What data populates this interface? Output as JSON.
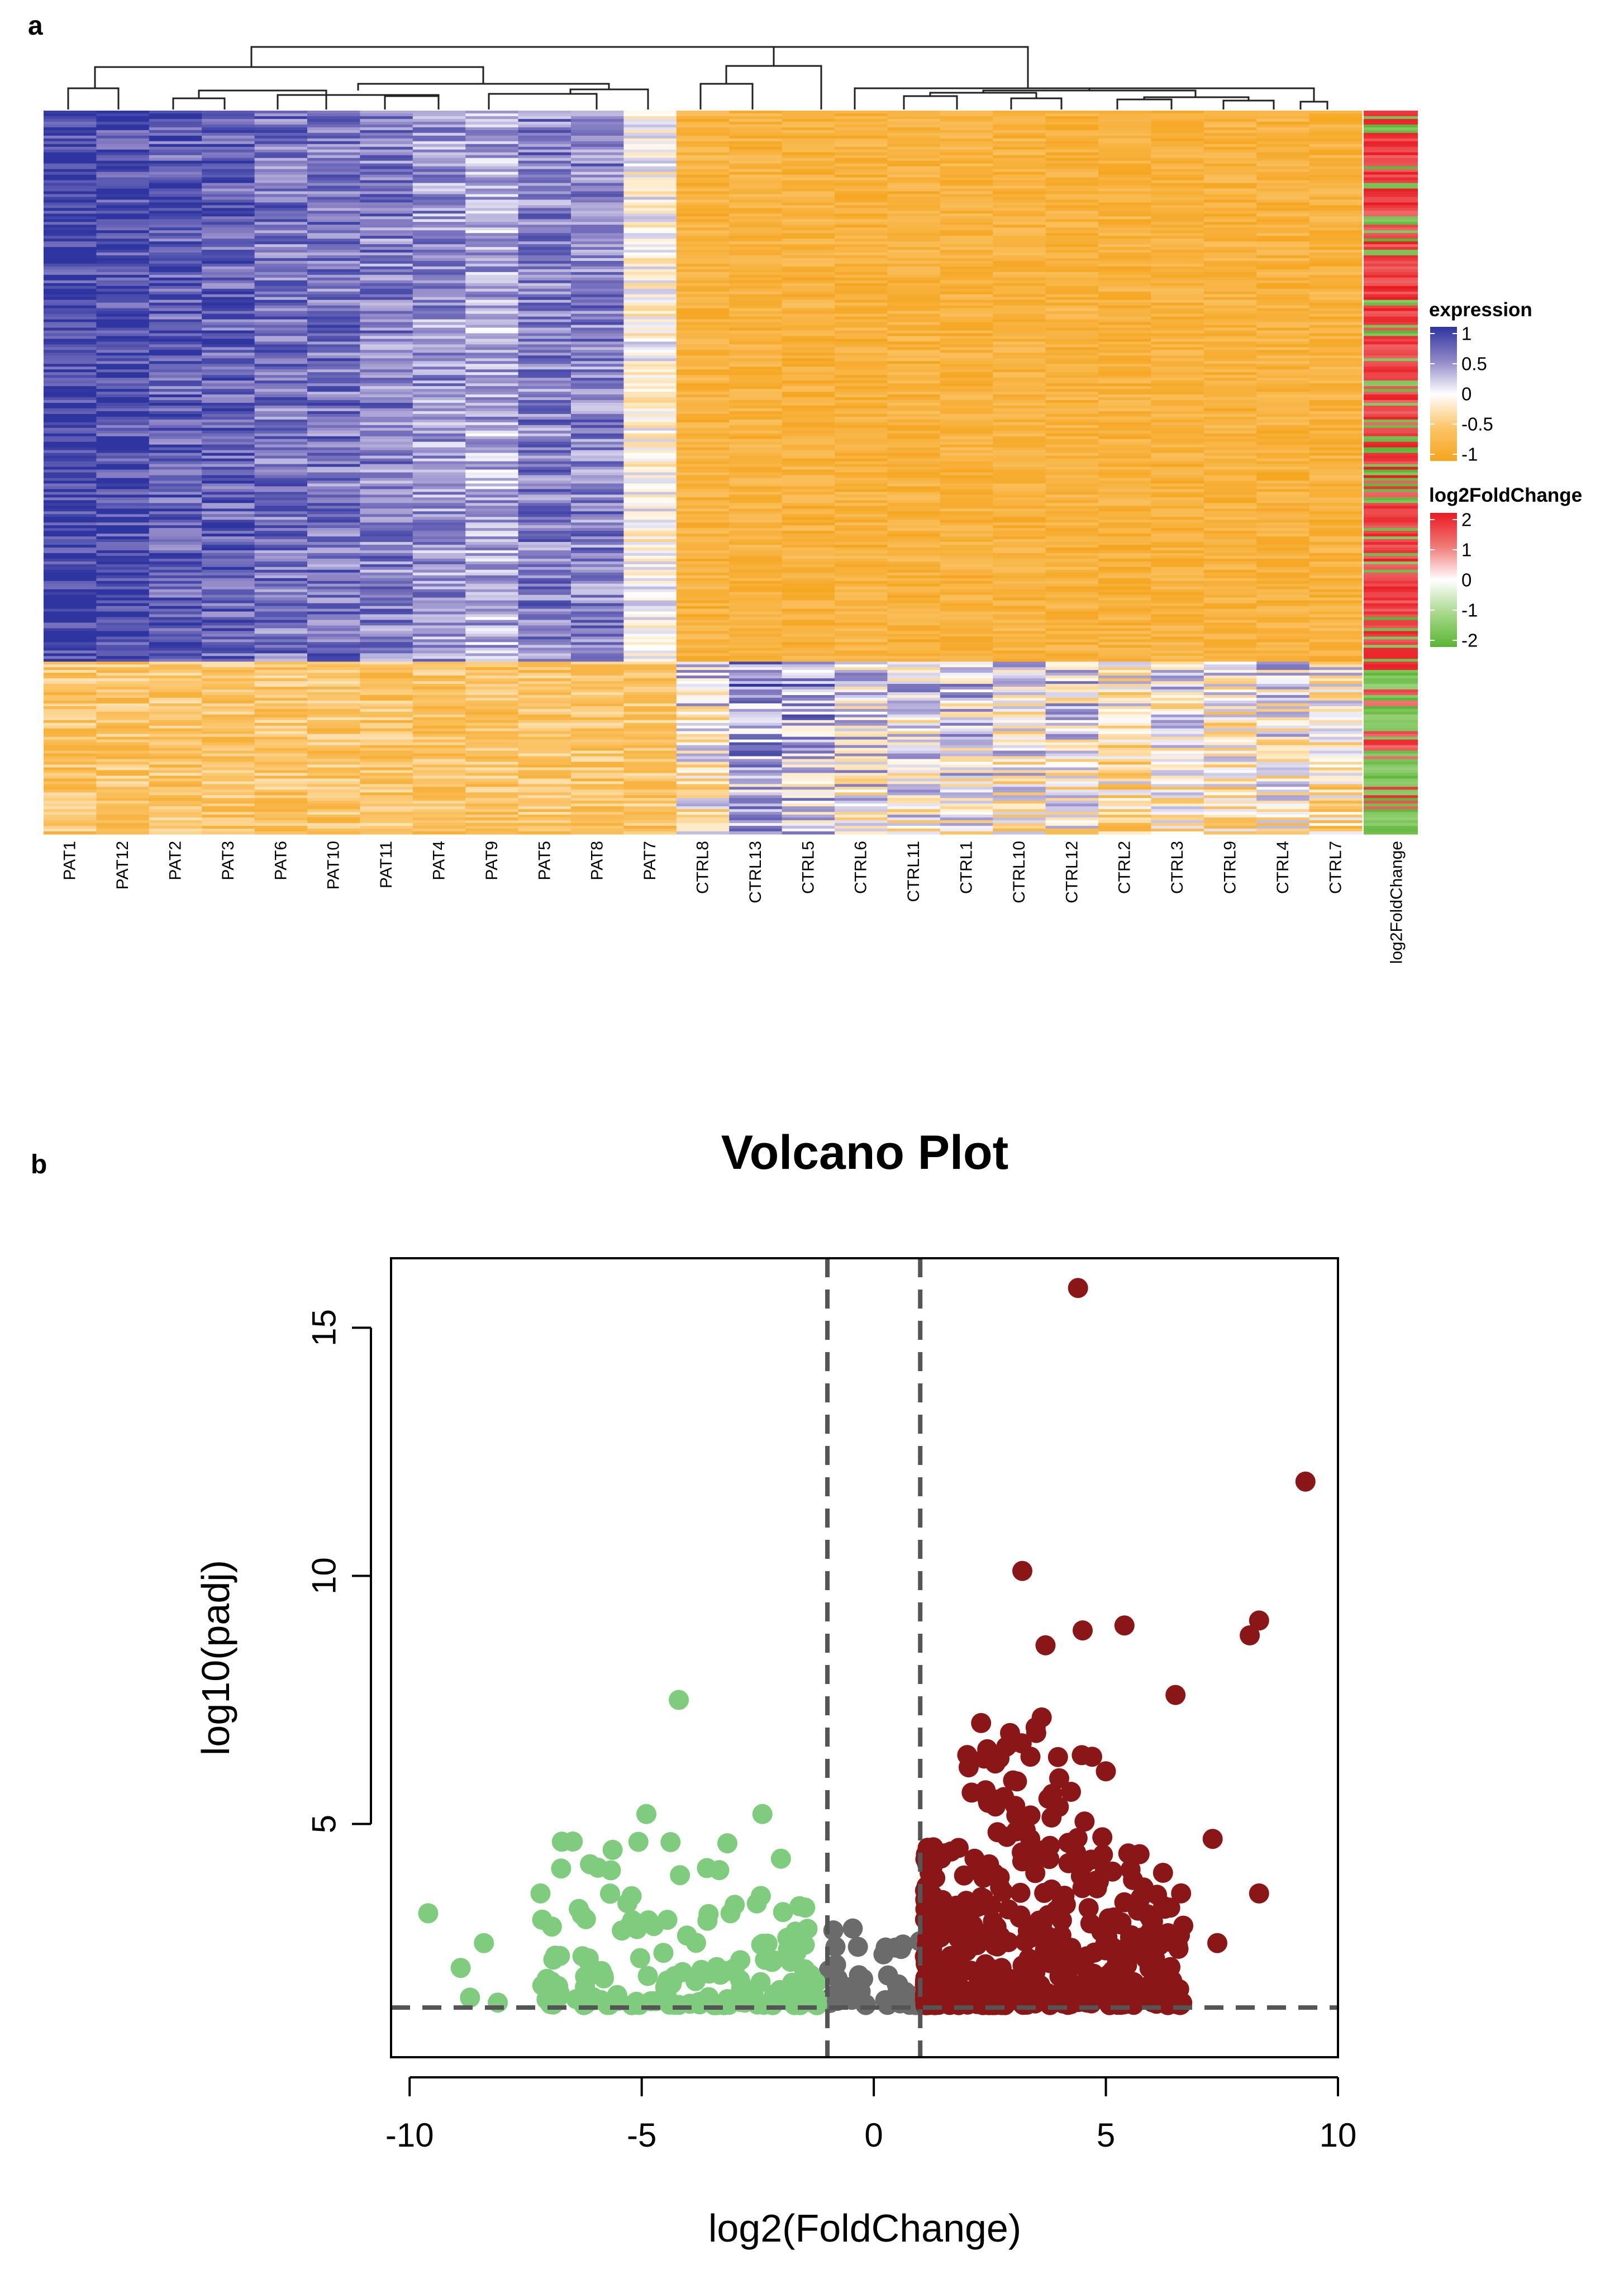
{
  "chart_data": [
    {
      "type": "heatmap",
      "panel_label": "a",
      "samples": [
        "PAT1",
        "PAT12",
        "PAT2",
        "PAT3",
        "PAT6",
        "PAT10",
        "PAT11",
        "PAT4",
        "PAT9",
        "PAT5",
        "PAT8",
        "PAT7",
        "CTRL8",
        "CTRL13",
        "CTRL5",
        "CTRL6",
        "CTRL11",
        "CTRL1",
        "CTRL10",
        "CTRL12",
        "CTRL2",
        "CTRL3",
        "CTRL9",
        "CTRL4",
        "CTRL7"
      ],
      "annotation_column": "log2FoldChange",
      "dendrogram": "hierarchical clustering of samples (top)",
      "upper_gene_block_fraction": 0.76,
      "expression_legend": {
        "title": "expression",
        "ticks": [
          "1",
          "0.5",
          "0",
          "-0.5",
          "-1"
        ],
        "colors": [
          "#2f35a0",
          "#8f86c7",
          "#ffffff",
          "#fbc56a",
          "#f5a51e"
        ]
      },
      "foldchange_legend": {
        "title": "log2FoldChange",
        "ticks": [
          "2",
          "1",
          "0",
          "-1",
          "-2"
        ],
        "colors": [
          "#ea1a22",
          "#f07a79",
          "#ffffff",
          "#a8d88a",
          "#5ab534"
        ]
      }
    },
    {
      "type": "scatter",
      "panel_label": "b",
      "title": "Volcano Plot",
      "xlabel": "log2(FoldChange)",
      "ylabel": "log10(padj)",
      "xlim": [
        -10.4,
        10.0
      ],
      "ylim": [
        0.3,
        16.4
      ],
      "xticks": [
        "-10",
        "-5",
        "0",
        "5",
        "10"
      ],
      "yticks": [
        "5",
        "10",
        "15"
      ],
      "fold_change_cutoffs": [
        -1,
        1
      ],
      "padj_cutoff_log10": 1.3,
      "colors": {
        "down": "#7fcc7e",
        "not_significant": "#6b6b6b",
        "up": "#8b1617"
      },
      "highlighted_points": [
        {
          "group": "up",
          "x": 4.4,
          "y": 15.8
        },
        {
          "group": "up",
          "x": 9.3,
          "y": 11.9
        },
        {
          "group": "up",
          "x": 3.2,
          "y": 10.1
        },
        {
          "group": "up",
          "x": 8.3,
          "y": 9.1
        },
        {
          "group": "up",
          "x": 8.1,
          "y": 8.8
        },
        {
          "group": "up",
          "x": 5.4,
          "y": 9.0
        },
        {
          "group": "up",
          "x": 4.5,
          "y": 8.9
        },
        {
          "group": "up",
          "x": 3.7,
          "y": 8.6
        },
        {
          "group": "up",
          "x": 6.5,
          "y": 7.6
        },
        {
          "group": "up",
          "x": 7.3,
          "y": 4.7
        },
        {
          "group": "up",
          "x": 8.3,
          "y": 3.6
        },
        {
          "group": "up",
          "x": 7.4,
          "y": 2.6
        },
        {
          "group": "down",
          "x": -4.2,
          "y": 7.5
        },
        {
          "group": "down",
          "x": -9.6,
          "y": 3.2
        },
        {
          "group": "down",
          "x": -8.9,
          "y": 2.1
        },
        {
          "group": "down",
          "x": -8.4,
          "y": 2.6
        },
        {
          "group": "down",
          "x": -8.7,
          "y": 1.5
        },
        {
          "group": "down",
          "x": -8.1,
          "y": 1.4
        },
        {
          "group": "down",
          "x": -2.4,
          "y": 5.2
        },
        {
          "group": "down",
          "x": -4.9,
          "y": 5.2
        },
        {
          "group": "down",
          "x": -2.0,
          "y": 4.3
        }
      ]
    }
  ]
}
